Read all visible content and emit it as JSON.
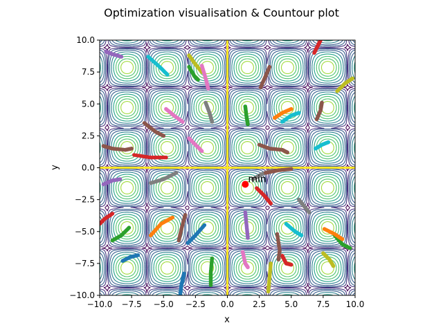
{
  "chart_data": {
    "type": "contour",
    "title": "Optimization visualisation & Countour plot",
    "xlabel": "x",
    "ylabel": "y",
    "xlim": [
      -10,
      10
    ],
    "ylim": [
      -10,
      10
    ],
    "x_ticks": [
      -10.0,
      -7.5,
      -5.0,
      -2.5,
      0.0,
      2.5,
      5.0,
      7.5,
      10.0
    ],
    "y_ticks": [
      -10.0,
      -7.5,
      -5.0,
      -2.5,
      0.0,
      2.5,
      5.0,
      7.5,
      10.0
    ],
    "x_tick_labels": [
      "−10.0",
      "−7.5",
      "−5.0",
      "−2.5",
      "0.0",
      "2.5",
      "5.0",
      "7.5",
      "10.0"
    ],
    "y_tick_labels": [
      "−10.0",
      "−7.5",
      "−5.0",
      "−2.5",
      "0.0",
      "2.5",
      "5.0",
      "7.5",
      "10.0"
    ],
    "grid": false,
    "legend": "none",
    "minimum": {
      "label": "min",
      "x": 1.4,
      "y": -1.3,
      "color": "#ff0000"
    },
    "contour": {
      "function": "z = sqrt(|sin(x)·sin(y)|), ridges along x = 0 and y = 0",
      "levels": [
        0.08,
        0.2,
        0.32,
        0.45,
        0.58,
        0.7,
        0.8,
        0.88,
        0.94
      ],
      "colormap": [
        "#440154",
        "#46327e",
        "#365c8d",
        "#277f8e",
        "#1fa187",
        "#4ac16d",
        "#a0da39",
        "#fde725"
      ]
    },
    "trajectories": [
      {
        "color": "#1f77b4",
        "points": [
          [
            -8.2,
            -7.3
          ],
          [
            -7.6,
            -7.0
          ],
          [
            -7.0,
            -6.85
          ]
        ]
      },
      {
        "color": "#ff7f0e",
        "points": [
          [
            -6.0,
            -5.3
          ],
          [
            -5.2,
            -4.4
          ],
          [
            -4.3,
            -3.9
          ]
        ]
      },
      {
        "color": "#2ca02c",
        "points": [
          [
            -9.0,
            -5.7
          ],
          [
            -8.3,
            -5.3
          ],
          [
            -7.7,
            -4.7
          ]
        ]
      },
      {
        "color": "#d62728",
        "points": [
          [
            -10.0,
            -4.4
          ],
          [
            -9.6,
            -4.0
          ],
          [
            -9.0,
            -3.6
          ]
        ]
      },
      {
        "color": "#9467bd",
        "points": [
          [
            -9.7,
            -1.3
          ],
          [
            -9.0,
            -1.0
          ],
          [
            -8.4,
            -0.9
          ]
        ]
      },
      {
        "color": "#8c564b",
        "points": [
          [
            -9.7,
            1.7
          ],
          [
            -9.0,
            1.5
          ],
          [
            -8.0,
            1.4
          ],
          [
            -7.5,
            1.5
          ]
        ]
      },
      {
        "color": "#e377c2",
        "points": [
          [
            -4.8,
            4.6
          ],
          [
            -4.2,
            4.1
          ],
          [
            -3.5,
            3.6
          ]
        ]
      },
      {
        "color": "#7f7f7f",
        "points": [
          [
            -6.0,
            -1.2
          ],
          [
            -5.0,
            -0.9
          ],
          [
            -4.0,
            -0.4
          ]
        ]
      },
      {
        "color": "#bcbd22",
        "points": [
          [
            -3.0,
            8.8
          ],
          [
            -2.5,
            8.1
          ],
          [
            -2.0,
            7.5
          ]
        ]
      },
      {
        "color": "#17becf",
        "points": [
          [
            -6.2,
            8.7
          ],
          [
            -5.3,
            7.9
          ],
          [
            -4.7,
            7.3
          ]
        ]
      },
      {
        "color": "#d62728",
        "points": [
          [
            -7.3,
            1.0
          ],
          [
            -6.0,
            0.8
          ],
          [
            -4.8,
            0.8
          ]
        ]
      },
      {
        "color": "#8c564b",
        "points": [
          [
            -6.5,
            3.5
          ],
          [
            -5.6,
            2.8
          ],
          [
            -5.0,
            2.5
          ]
        ]
      },
      {
        "color": "#9467bd",
        "points": [
          [
            -9.5,
            9.1
          ],
          [
            -9.0,
            8.9
          ],
          [
            -8.3,
            8.7
          ]
        ]
      },
      {
        "color": "#e377c2",
        "points": [
          [
            -3.0,
            2.3
          ],
          [
            -2.4,
            1.7
          ],
          [
            -2.0,
            1.3
          ]
        ]
      },
      {
        "color": "#7f7f7f",
        "points": [
          [
            -1.7,
            5.1
          ],
          [
            -1.4,
            4.3
          ],
          [
            -1.2,
            3.6
          ]
        ]
      },
      {
        "color": "#e377c2",
        "points": [
          [
            -2.0,
            8.0
          ],
          [
            -1.7,
            7.0
          ],
          [
            -1.5,
            6.2
          ]
        ]
      },
      {
        "color": "#2ca02c",
        "points": [
          [
            -3.0,
            7.9
          ],
          [
            -2.6,
            7.2
          ],
          [
            -2.3,
            6.9
          ]
        ]
      },
      {
        "color": "#1f77b4",
        "points": [
          [
            -1.8,
            -4.5
          ],
          [
            -2.5,
            -5.3
          ],
          [
            -3.1,
            -5.9
          ]
        ]
      },
      {
        "color": "#8c564b",
        "points": [
          [
            -3.3,
            -3.7
          ],
          [
            -3.6,
            -4.8
          ],
          [
            -3.8,
            -5.7
          ]
        ]
      },
      {
        "color": "#1f77b4",
        "points": [
          [
            -3.4,
            -8.3
          ],
          [
            -3.6,
            -9.2
          ],
          [
            -3.7,
            -10.0
          ]
        ]
      },
      {
        "color": "#2ca02c",
        "points": [
          [
            -1.2,
            -7.1
          ],
          [
            -1.3,
            -8.2
          ],
          [
            -1.3,
            -9.2
          ]
        ]
      },
      {
        "color": "#9467bd",
        "points": [
          [
            1.4,
            -3.5
          ],
          [
            1.5,
            -4.5
          ],
          [
            1.6,
            -5.5
          ]
        ]
      },
      {
        "color": "#e377c2",
        "points": [
          [
            1.2,
            -6.6
          ],
          [
            1.4,
            -7.5
          ],
          [
            1.6,
            -7.8
          ]
        ]
      },
      {
        "color": "#2ca02c",
        "points": [
          [
            1.4,
            4.8
          ],
          [
            1.5,
            4.0
          ],
          [
            1.6,
            3.4
          ]
        ]
      },
      {
        "color": "#8c564b",
        "points": [
          [
            2.5,
            1.8
          ],
          [
            3.3,
            1.5
          ],
          [
            4.3,
            1.4
          ],
          [
            4.7,
            1.2
          ]
        ]
      },
      {
        "color": "#7f7f7f",
        "points": [
          [
            2.0,
            -0.9
          ],
          [
            2.7,
            -0.5
          ],
          [
            3.5,
            -0.2
          ]
        ]
      },
      {
        "color": "#8c564b",
        "points": [
          [
            3.0,
            -0.4
          ],
          [
            4.0,
            -0.2
          ],
          [
            5.0,
            -0.1
          ]
        ]
      },
      {
        "color": "#d62728",
        "points": [
          [
            2.3,
            -1.6
          ],
          [
            2.9,
            -2.2
          ],
          [
            3.4,
            -2.8
          ]
        ]
      },
      {
        "color": "#8c564b",
        "points": [
          [
            2.6,
            6.3
          ],
          [
            3.0,
            7.2
          ],
          [
            3.3,
            7.9
          ]
        ]
      },
      {
        "color": "#ff7f0e",
        "points": [
          [
            3.7,
            3.9
          ],
          [
            4.3,
            4.3
          ],
          [
            5.0,
            4.6
          ]
        ]
      },
      {
        "color": "#17becf",
        "points": [
          [
            4.3,
            3.6
          ],
          [
            5.0,
            4.1
          ],
          [
            5.6,
            4.3
          ]
        ]
      },
      {
        "color": "#17becf",
        "points": [
          [
            4.6,
            -4.4
          ],
          [
            5.3,
            -5.0
          ],
          [
            5.8,
            -5.3
          ]
        ]
      },
      {
        "color": "#d62728",
        "points": [
          [
            4.3,
            -6.9
          ],
          [
            4.6,
            -7.5
          ],
          [
            5.0,
            -7.6
          ]
        ]
      },
      {
        "color": "#8c564b",
        "points": [
          [
            3.9,
            -5.2
          ],
          [
            4.1,
            -6.5
          ],
          [
            4.0,
            -7.2
          ]
        ]
      },
      {
        "color": "#bcbd22",
        "points": [
          [
            3.4,
            -7.5
          ],
          [
            3.3,
            -8.6
          ],
          [
            3.2,
            -9.7
          ]
        ]
      },
      {
        "color": "#8c564b",
        "points": [
          [
            7.0,
            3.8
          ],
          [
            7.3,
            4.5
          ],
          [
            7.4,
            5.1
          ]
        ]
      },
      {
        "color": "#17becf",
        "points": [
          [
            6.9,
            1.5
          ],
          [
            7.4,
            1.8
          ],
          [
            7.9,
            2.0
          ]
        ]
      },
      {
        "color": "#bcbd22",
        "points": [
          [
            8.6,
            6.0
          ],
          [
            9.2,
            6.6
          ],
          [
            9.8,
            7.0
          ]
        ]
      },
      {
        "color": "#d62728",
        "points": [
          [
            6.8,
            9.0
          ],
          [
            7.1,
            9.6
          ],
          [
            7.3,
            10.0
          ]
        ]
      },
      {
        "color": "#7f7f7f",
        "points": [
          [
            5.6,
            -2.5
          ],
          [
            6.0,
            -3.0
          ],
          [
            6.4,
            -3.5
          ]
        ]
      },
      {
        "color": "#bcbd22",
        "points": [
          [
            7.5,
            -6.7
          ],
          [
            8.0,
            -7.2
          ],
          [
            8.3,
            -7.7
          ]
        ]
      },
      {
        "color": "#2ca02c",
        "points": [
          [
            8.4,
            -5.3
          ],
          [
            9.0,
            -6.0
          ],
          [
            9.6,
            -6.3
          ]
        ]
      },
      {
        "color": "#ff7f0e",
        "points": [
          [
            7.6,
            -4.8
          ],
          [
            8.4,
            -5.2
          ],
          [
            9.0,
            -5.6
          ]
        ]
      }
    ]
  }
}
